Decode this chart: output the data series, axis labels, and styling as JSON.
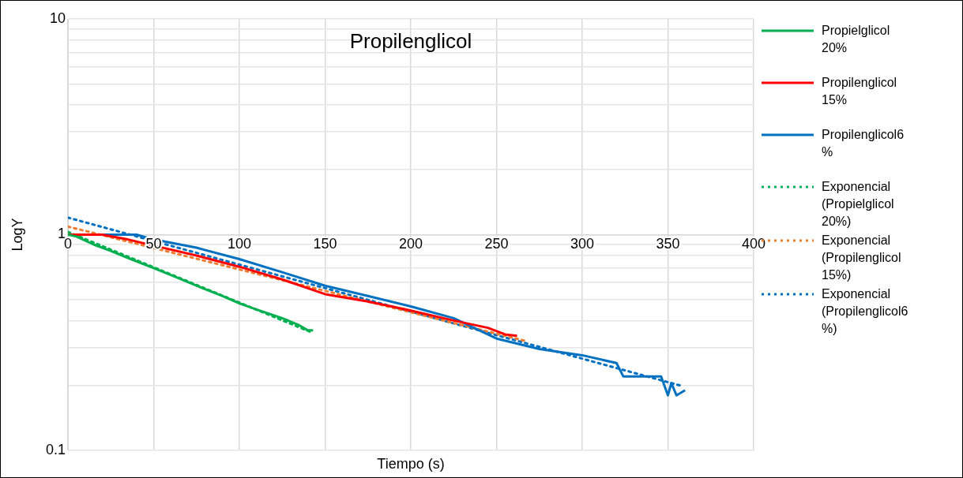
{
  "chart_data": {
    "type": "line",
    "title": "Propilenglicol",
    "xlabel": "Tiempo (s)",
    "ylabel": "LogY",
    "log": "y",
    "xlim": [
      0,
      400
    ],
    "xticks": [
      0,
      50,
      100,
      150,
      200,
      250,
      300,
      350,
      400
    ],
    "ylim": [
      0.1,
      10
    ],
    "yticks": [
      0.1,
      {
        "value": 0.2,
        "label": null
      },
      {
        "value": 0.3,
        "label": null
      },
      {
        "value": 0.4,
        "label": null
      },
      {
        "value": 0.5,
        "label": null
      },
      {
        "value": 0.6,
        "label": null
      },
      {
        "value": 0.7,
        "label": null
      },
      {
        "value": 0.8,
        "label": null
      },
      {
        "value": 0.9,
        "label": null
      },
      1,
      {
        "value": 2,
        "label": null
      },
      {
        "value": 3,
        "label": null
      },
      {
        "value": 4,
        "label": null
      },
      {
        "value": 5,
        "label": null
      },
      {
        "value": 6,
        "label": null
      },
      {
        "value": 7,
        "label": null
      },
      {
        "value": 8,
        "label": null
      },
      {
        "value": 9,
        "label": null
      },
      10
    ],
    "grid": true,
    "legend": "right",
    "marker": "none",
    "series": [
      {
        "name": "Propielglicol 20%",
        "color": "#00b050",
        "line_style": "solid",
        "x": [
          0,
          5,
          15,
          25,
          35,
          50,
          60,
          75,
          90,
          100,
          110,
          125,
          135,
          140,
          143
        ],
        "values": [
          1,
          0.98,
          0.9,
          0.84,
          0.78,
          0.7,
          0.65,
          0.58,
          0.52,
          0.48,
          0.45,
          0.41,
          0.38,
          0.36,
          0.36
        ]
      },
      {
        "name": "Propilenglicol 15%",
        "color": "#ff0000",
        "line_style": "solid",
        "x": [
          0,
          20,
          35,
          50,
          75,
          100,
          125,
          150,
          175,
          200,
          225,
          245,
          255,
          262
        ],
        "values": [
          1,
          1,
          0.95,
          0.89,
          0.8,
          0.71,
          0.62,
          0.53,
          0.49,
          0.445,
          0.4,
          0.37,
          0.345,
          0.34
        ]
      },
      {
        "name": "Propilenglicol6 %",
        "color": "#0070c0",
        "line_style": "solid",
        "x": [
          0,
          40,
          50,
          75,
          100,
          125,
          150,
          175,
          200,
          225,
          250,
          275,
          300,
          320,
          324,
          346,
          350,
          352,
          355,
          360
        ],
        "values": [
          1,
          1,
          0.95,
          0.87,
          0.77,
          0.67,
          0.58,
          0.52,
          0.465,
          0.41,
          0.33,
          0.295,
          0.276,
          0.254,
          0.22,
          0.22,
          0.18,
          0.205,
          0.18,
          0.19
        ]
      },
      {
        "name": "Exponencial (Propielglicol 20%)",
        "color": "#00b050",
        "line_style": "dotted",
        "x": [
          0,
          143
        ],
        "values": [
          1.03,
          0.35
        ]
      },
      {
        "name": "Exponencial (Propilenglicol 15%)",
        "color": "#ed7d31",
        "line_style": "dotted",
        "x": [
          0,
          268
        ],
        "values": [
          1.09,
          0.32
        ]
      },
      {
        "name": "Exponencial (Propilenglicol6 %)",
        "color": "#0070c0",
        "line_style": "dotted",
        "x": [
          0,
          357
        ],
        "values": [
          1.2,
          0.2
        ]
      }
    ]
  }
}
